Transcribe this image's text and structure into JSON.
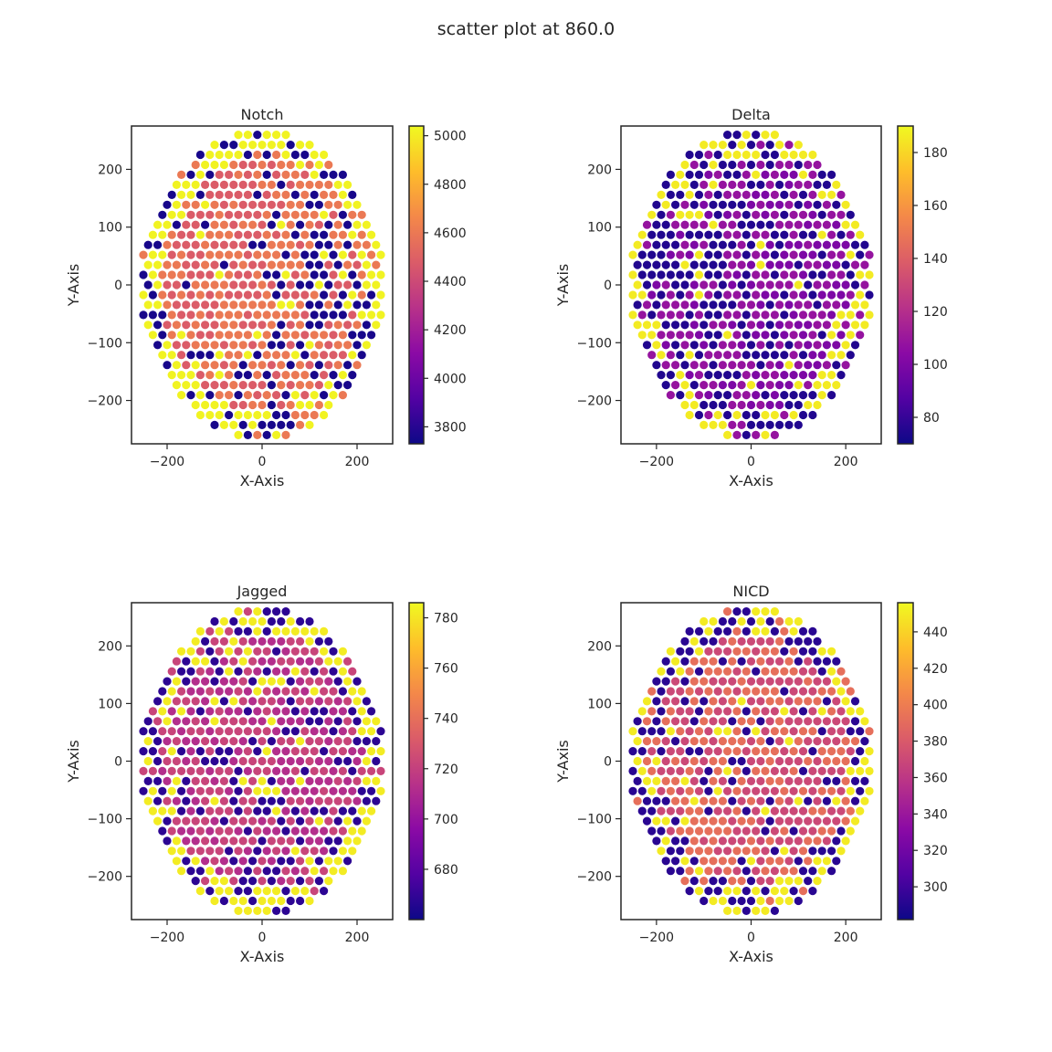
{
  "figure": {
    "suptitle": "scatter plot at 860.0"
  },
  "colormap": {
    "name": "plasma",
    "stops": [
      "#0d0887",
      "#5302a3",
      "#8b0aa5",
      "#b83289",
      "#db5c68",
      "#f48849",
      "#febd2a",
      "#f0f921"
    ]
  },
  "chart_data": [
    {
      "type": "scatter",
      "title": "Notch",
      "xlabel": "X-Axis",
      "ylabel": "Y-Axis",
      "xlim": [
        -275,
        275
      ],
      "ylim": [
        -275,
        275
      ],
      "xticks": [
        -200,
        0,
        200
      ],
      "yticks": [
        -200,
        -100,
        0,
        100,
        200
      ],
      "xtick_labels": [
        "−200",
        "0",
        "200"
      ],
      "ytick_labels": [
        "−200",
        "−100",
        "0",
        "100",
        "200"
      ],
      "point_spacing": 20,
      "disk_radius": 265,
      "color_range": [
        3730,
        5040
      ],
      "colorbar_ticks": [
        3800,
        4000,
        4200,
        4400,
        4600,
        4800,
        5000
      ],
      "colorbar_tick_labels": [
        "3800",
        "4000",
        "4200",
        "4400",
        "4600",
        "4800",
        "5000"
      ],
      "color_value_note_pattern": "checkerboard of low/high cells around a mid-level body",
      "value_levels": {
        "low": 3760,
        "mid_a": 4480,
        "mid_b": 4600,
        "high": 5020
      },
      "pattern": {
        "rim_high_fraction": 0.5,
        "inner_low_fraction": 0.18,
        "low_side": "right",
        "seed": 3
      }
    },
    {
      "type": "scatter",
      "title": "Delta",
      "xlabel": "X-Axis",
      "ylabel": "Y-Axis",
      "xlim": [
        -275,
        275
      ],
      "ylim": [
        -275,
        275
      ],
      "xticks": [
        -200,
        0,
        200
      ],
      "yticks": [
        -200,
        -100,
        0,
        100,
        200
      ],
      "xtick_labels": [
        "−200",
        "0",
        "200"
      ],
      "ytick_labels": [
        "−200",
        "−100",
        "0",
        "100",
        "200"
      ],
      "point_spacing": 20,
      "disk_radius": 265,
      "color_range": [
        70,
        190
      ],
      "colorbar_ticks": [
        80,
        100,
        120,
        140,
        160,
        180
      ],
      "colorbar_tick_labels": [
        "80",
        "100",
        "120",
        "140",
        "160",
        "180"
      ],
      "value_levels": {
        "low": 75,
        "mid_a": 100,
        "mid_b": 108,
        "high": 186
      },
      "pattern": {
        "rim_high_fraction": 0.45,
        "inner_low_fraction": 0.28,
        "low_side": "left",
        "seed": 7
      }
    },
    {
      "type": "scatter",
      "title": "Jagged",
      "xlabel": "X-Axis",
      "ylabel": "Y-Axis",
      "xlim": [
        -275,
        275
      ],
      "ylim": [
        -275,
        275
      ],
      "xticks": [
        -200,
        0,
        200
      ],
      "yticks": [
        -200,
        -100,
        0,
        100,
        200
      ],
      "xtick_labels": [
        "−200",
        "0",
        "200"
      ],
      "ytick_labels": [
        "−200",
        "−100",
        "0",
        "100",
        "200"
      ],
      "point_spacing": 20,
      "disk_radius": 265,
      "color_range": [
        660,
        786
      ],
      "colorbar_ticks": [
        680,
        700,
        720,
        740,
        760,
        780
      ],
      "colorbar_tick_labels": [
        "680",
        "700",
        "720",
        "740",
        "760",
        "780"
      ],
      "value_levels": {
        "low": 668,
        "mid_a": 712,
        "mid_b": 722,
        "high": 782
      },
      "pattern": {
        "rim_high_fraction": 0.5,
        "inner_low_fraction": 0.22,
        "low_side": "both",
        "seed": 11
      }
    },
    {
      "type": "scatter",
      "title": "NICD",
      "xlabel": "X-Axis",
      "ylabel": "Y-Axis",
      "xlim": [
        -275,
        275
      ],
      "ylim": [
        -275,
        275
      ],
      "xticks": [
        -200,
        0,
        200
      ],
      "yticks": [
        -200,
        -100,
        0,
        100,
        200
      ],
      "xtick_labels": [
        "−200",
        "0",
        "200"
      ],
      "ytick_labels": [
        "−200",
        "−100",
        "0",
        "100",
        "200"
      ],
      "point_spacing": 20,
      "disk_radius": 265,
      "color_range": [
        282,
        456
      ],
      "colorbar_ticks": [
        300,
        320,
        340,
        360,
        380,
        400,
        420,
        440
      ],
      "colorbar_tick_labels": [
        "300",
        "320",
        "340",
        "360",
        "380",
        "400",
        "420",
        "440"
      ],
      "value_levels": {
        "low": 292,
        "mid_a": 370,
        "mid_b": 392,
        "high": 450
      },
      "pattern": {
        "rim_high_fraction": 0.4,
        "inner_low_fraction": 0.12,
        "low_side": "left",
        "seed": 19
      }
    }
  ]
}
